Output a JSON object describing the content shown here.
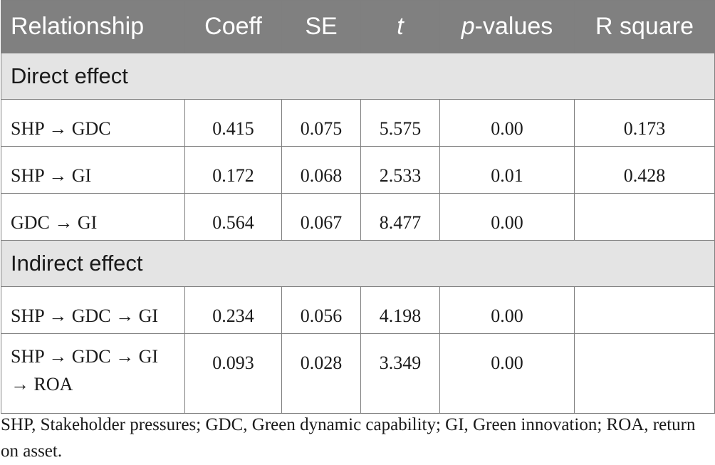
{
  "table": {
    "headers": {
      "relationship": "Relationship",
      "coeff": "Coeff",
      "se": "SE",
      "t": "t",
      "p_italic": "p",
      "p_rest": "-values",
      "r_square": "R square"
    },
    "sections": [
      {
        "title": "Direct effect",
        "rows": [
          {
            "relationship": "SHP → GDC",
            "coeff": "0.415",
            "se": "0.075",
            "t": "5.575",
            "p": "0.00",
            "r_square": "0.173"
          },
          {
            "relationship": "SHP → GI",
            "coeff": "0.172",
            "se": "0.068",
            "t": "2.533",
            "p": "0.01",
            "r_square": "0.428"
          },
          {
            "relationship": "GDC → GI",
            "coeff": "0.564",
            "se": "0.067",
            "t": "8.477",
            "p": "0.00",
            "r_square": ""
          }
        ]
      },
      {
        "title": "Indirect effect",
        "rows": [
          {
            "relationship": "SHP → GDC → GI",
            "coeff": "0.234",
            "se": "0.056",
            "t": "4.198",
            "p": "0.00",
            "r_square": ""
          },
          {
            "relationship": "SHP → GDC → GI → ROA",
            "relationship_line1": "SHP → GDC → GI",
            "relationship_line2": "→ ROA",
            "coeff": "0.093",
            "se": "0.028",
            "t": "3.349",
            "p": "0.00",
            "r_square": ""
          }
        ]
      }
    ]
  },
  "footnote": "SHP, Stakeholder pressures; GDC, Green dynamic capability; GI, Green innovation; ROA, return on asset."
}
